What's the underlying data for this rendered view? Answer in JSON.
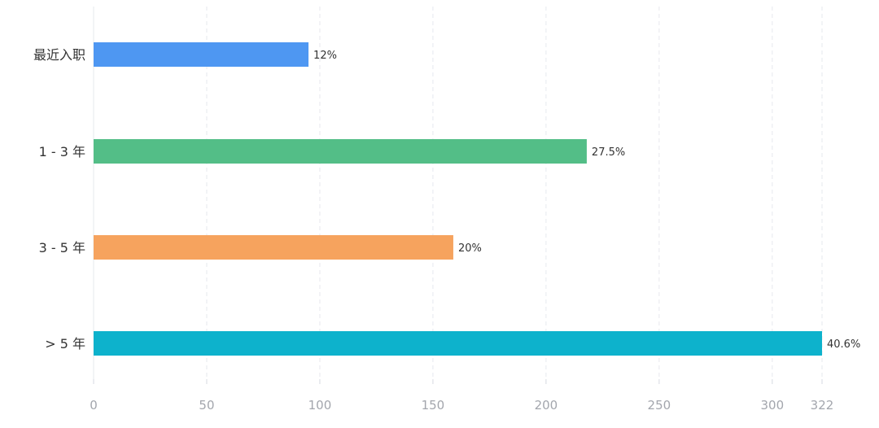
{
  "chart_data": {
    "type": "bar",
    "orientation": "horizontal",
    "categories": [
      "最近入职",
      "1 - 3 年",
      "3 - 5 年",
      "> 5 年"
    ],
    "values": [
      95,
      218,
      159,
      322
    ],
    "data_labels": [
      "12%",
      "27.5%",
      "20%",
      "40.6%"
    ],
    "colors": [
      "#4e97f2",
      "#53be87",
      "#f6a35e",
      "#0db2cc"
    ],
    "x_ticks": [
      0,
      50,
      100,
      150,
      200,
      250,
      300,
      322
    ],
    "xlim": [
      0,
      322
    ],
    "grid": true,
    "legend": "none",
    "title": "",
    "xlabel": "",
    "ylabel": ""
  }
}
